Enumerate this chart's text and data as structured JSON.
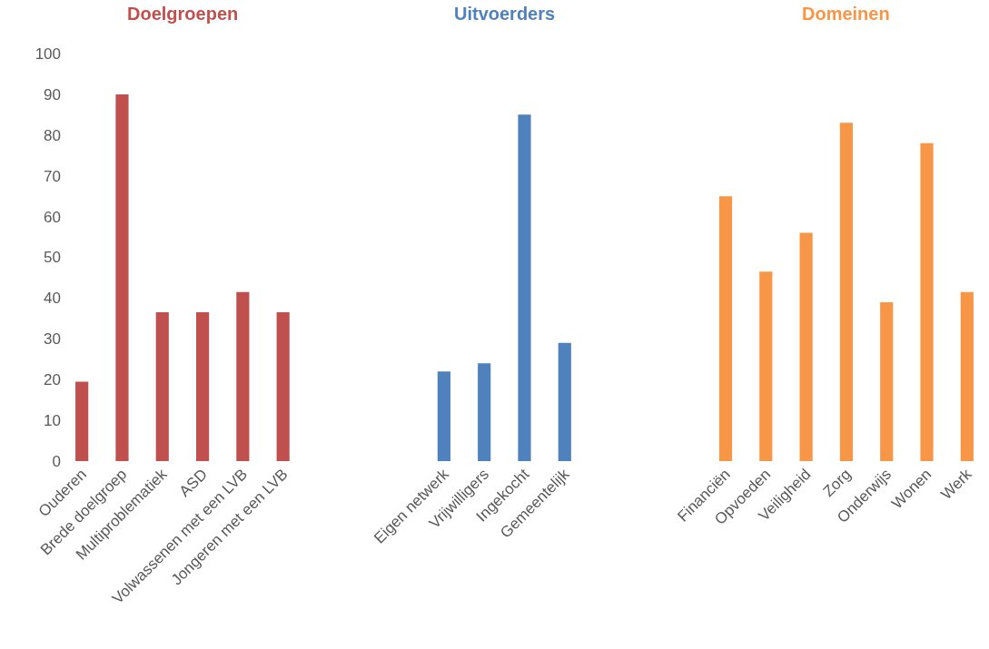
{
  "chart_data": {
    "type": "bar",
    "categories": [
      "Ouderen",
      "Brede doelgroep",
      "Multiproblematiek",
      "ASD",
      "Volwassenen met een LVB",
      "Jongeren met een LVB",
      null,
      null,
      null,
      "Eigen netwerk",
      "Vrijwilligers",
      "Ingekocht",
      "Gemeentelijk",
      null,
      null,
      null,
      "Financiën",
      "Opvoeden",
      "Veiligheid",
      "Zorg",
      "Onderwijs",
      "Wonen",
      "Werk"
    ],
    "series": [
      {
        "name": "Doelgroepen",
        "color": "#c0504d",
        "values": [
          19.5,
          90,
          36.5,
          36.5,
          41.5,
          36.5,
          null,
          null,
          null,
          null,
          null,
          null,
          null,
          null,
          null,
          null,
          null,
          null,
          null,
          null,
          null,
          null,
          null
        ]
      },
      {
        "name": "Uitvoerders",
        "color": "#4f81bd",
        "values": [
          null,
          null,
          null,
          null,
          null,
          null,
          null,
          null,
          null,
          22,
          24,
          85,
          29,
          null,
          null,
          null,
          null,
          null,
          null,
          null,
          null,
          null,
          null
        ]
      },
      {
        "name": "Domeinen",
        "color": "#f79646",
        "values": [
          null,
          null,
          null,
          null,
          null,
          null,
          null,
          null,
          null,
          null,
          null,
          null,
          null,
          null,
          null,
          null,
          65,
          46.5,
          56,
          83,
          39,
          78,
          41.5
        ]
      }
    ],
    "ylim": [
      0,
      100
    ],
    "yticks": [
      0,
      10,
      20,
      30,
      40,
      50,
      60,
      70,
      80,
      90,
      100
    ],
    "grid": false,
    "legend": false
  }
}
